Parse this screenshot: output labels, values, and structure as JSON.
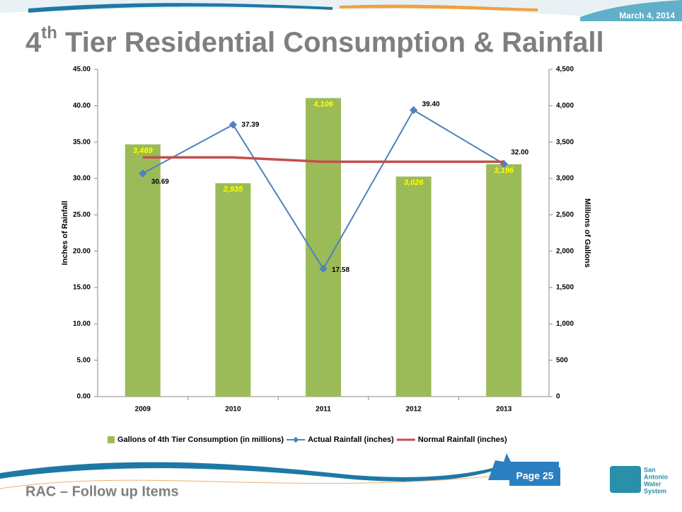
{
  "slide": {
    "date": "March 4, 2014",
    "title_parts": [
      "4",
      "th",
      " Tier Residential Consumption & Rainfall"
    ],
    "footer": "RAC – Follow up Items",
    "page": "Page 25",
    "logo": [
      "San",
      "Antonio",
      "Water",
      "System"
    ]
  },
  "chart_data": {
    "type": "bar-line",
    "y_label": "Inches of Rainfall",
    "y2_label": "Millions of Gallons",
    "categories": [
      "2009",
      "2010",
      "2011",
      "2012",
      "2013"
    ],
    "ylim": [
      0,
      45
    ],
    "yticks": [
      {
        "value": 0,
        "label": "0.00"
      },
      {
        "value": 5,
        "label": "5.00"
      },
      {
        "value": 10,
        "label": "10.00"
      },
      {
        "value": 15,
        "label": "15.00"
      },
      {
        "value": 20,
        "label": "20.00"
      },
      {
        "value": 25,
        "label": "25.00"
      },
      {
        "value": 30,
        "label": "30.00"
      },
      {
        "value": 35,
        "label": "35.00"
      },
      {
        "value": 40,
        "label": "40.00"
      },
      {
        "value": 45,
        "label": "45.00"
      }
    ],
    "y2lim": [
      0,
      4500
    ],
    "y2ticks": [
      0,
      500,
      {
        "value": 1000,
        "label": "1,000"
      },
      {
        "value": 1500,
        "label": "1,500"
      },
      {
        "value": 2000,
        "label": "2,000"
      },
      {
        "value": 2500,
        "label": "2,500"
      },
      {
        "value": 3000,
        "label": "3,000"
      },
      {
        "value": 3500,
        "label": "3,500"
      },
      {
        "value": 4000,
        "label": "4,000"
      },
      {
        "value": 4500,
        "label": "4,500"
      }
    ],
    "series": [
      {
        "name": "Gallons of 4th Tier Consumption (in millions)",
        "type": "bar",
        "axis": "y2",
        "color": "#9bbb59",
        "values": [
          3469,
          2935,
          4106,
          3026,
          3196
        ],
        "value_labels": [
          "3,469",
          "2,935",
          "4,106",
          "3,026",
          "3,196"
        ]
      },
      {
        "name": "Actual Rainfall (inches)",
        "type": "line",
        "marker": true,
        "color": "#4f81bd",
        "values": [
          30.69,
          37.39,
          17.58,
          39.4,
          32.0
        ],
        "value_labels": [
          "30.69",
          "37.39",
          "17.58",
          "39.40",
          "32.00"
        ]
      },
      {
        "name": "Normal Rainfall (inches)",
        "type": "line",
        "marker": false,
        "color": "#c0504d",
        "values": [
          32.9,
          32.9,
          32.3,
          32.3,
          32.3
        ]
      }
    ]
  }
}
